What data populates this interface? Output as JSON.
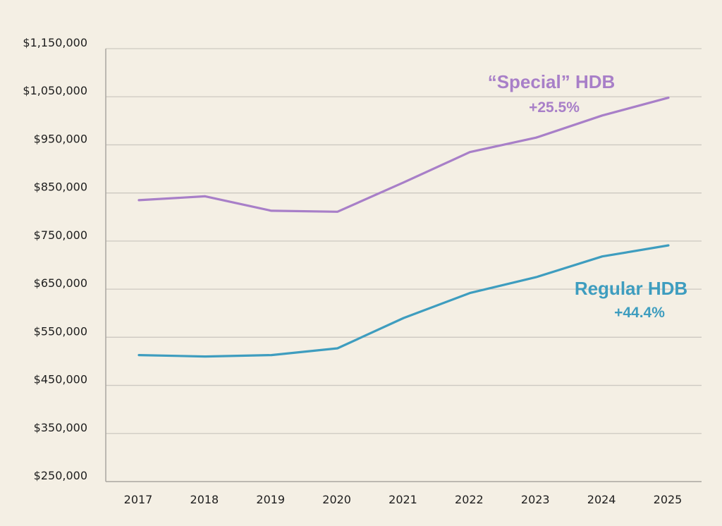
{
  "chart_data": {
    "type": "line",
    "title": "",
    "xlabel": "",
    "ylabel": "",
    "x": [
      "2017",
      "2018",
      "2019",
      "2020",
      "2021",
      "2022",
      "2023",
      "2024",
      "2025"
    ],
    "ylim": [
      250000,
      1150000
    ],
    "yticks": [
      250000,
      350000,
      450000,
      550000,
      650000,
      750000,
      850000,
      950000,
      1050000,
      1150000
    ],
    "ytick_labels": [
      "$250,000",
      "$350,000",
      "$450,000",
      "$550,000",
      "$650,000",
      "$750,000",
      "$850,000",
      "$950,000",
      "$1,050,000",
      "$1,150,000"
    ],
    "grid": "horizontal",
    "legend": "inline labels at line ends",
    "series": [
      {
        "name": "“Special” HDB",
        "change_label": "+25.5%",
        "color": "#a87fc8",
        "values": [
          835000,
          843000,
          813000,
          811000,
          872000,
          935000,
          965000,
          1011000,
          1048000
        ]
      },
      {
        "name": "Regular HDB",
        "change_label": "+44.4%",
        "color": "#3e9dbf",
        "values": [
          513000,
          510000,
          513000,
          527000,
          590000,
          642000,
          675000,
          718000,
          741000
        ]
      }
    ]
  },
  "colors": {
    "background": "#f4efe4",
    "axis": "#a9a6a0",
    "grid": "#cdc9c1",
    "text": "#1e1e1e"
  }
}
